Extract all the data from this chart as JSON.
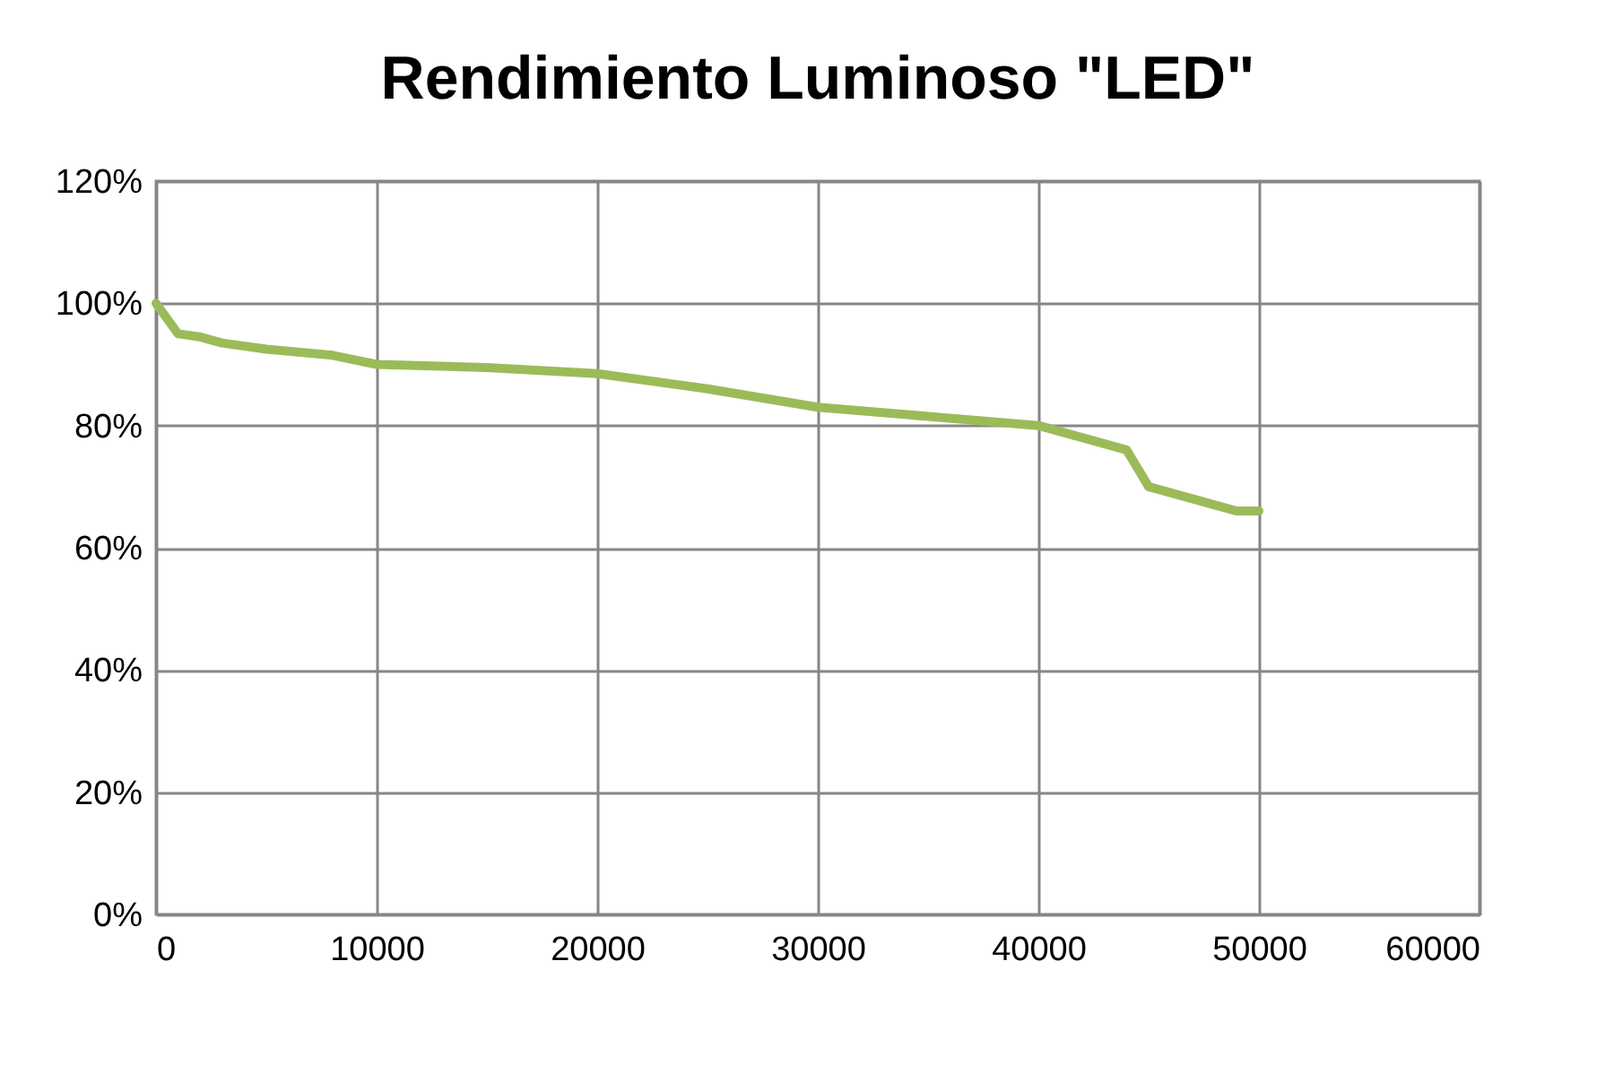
{
  "chart_data": {
    "type": "line",
    "title": "Rendimiento Luminoso \"LED\"",
    "x": [
      0,
      1000,
      2000,
      3000,
      5000,
      8000,
      10000,
      15000,
      20000,
      25000,
      30000,
      35000,
      40000,
      44000,
      45000,
      49000,
      50000
    ],
    "series": [
      {
        "color": "#9bbb59",
        "values": [
          100,
          95,
          94.5,
          93.5,
          92.5,
          91.5,
          90,
          89.5,
          88.5,
          86,
          83,
          81.5,
          80,
          76,
          70,
          66,
          66
        ]
      }
    ],
    "xlim": [
      0,
      60000
    ],
    "xticks": [
      0,
      10000,
      20000,
      30000,
      40000,
      50000,
      60000
    ],
    "ylim": [
      0,
      120
    ],
    "yticks": [
      {
        "value": 0,
        "label": "0%"
      },
      {
        "value": 20,
        "label": "20%"
      },
      {
        "value": 40,
        "label": "40%"
      },
      {
        "value": 60,
        "label": "60%"
      },
      {
        "value": 80,
        "label": "80%"
      },
      {
        "value": 100,
        "label": "100%"
      },
      {
        "value": 120,
        "label": "120%"
      }
    ],
    "grid": true,
    "marker": "none",
    "line_style": "solid"
  }
}
